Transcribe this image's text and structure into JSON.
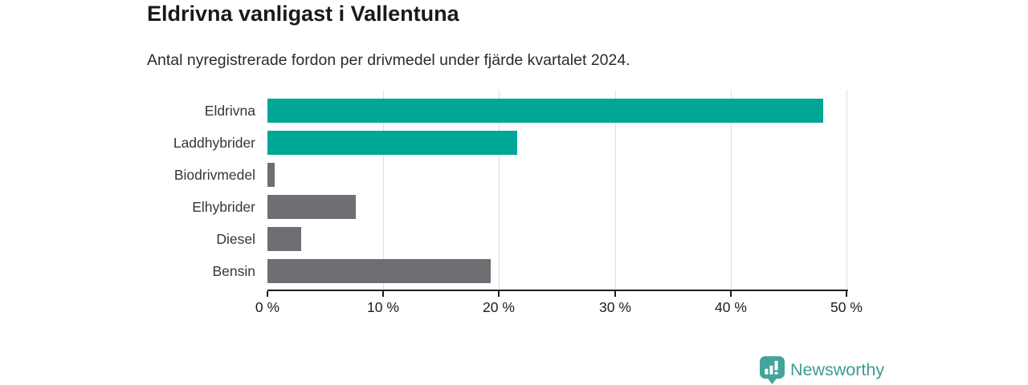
{
  "header": {
    "title": "Eldrivna vanligast i Vallentuna",
    "subtitle": "Antal nyregistrerade fordon per drivmedel under fjärde kvartalet 2024."
  },
  "chart_data": {
    "type": "bar",
    "orientation": "horizontal",
    "title": "Eldrivna vanligast i Vallentuna",
    "subtitle": "Antal nyregistrerade fordon per drivmedel under fjärde kvartalet 2024.",
    "categories": [
      "Eldrivna",
      "Laddhybrider",
      "Biodrivmedel",
      "Elhybrider",
      "Diesel",
      "Bensin"
    ],
    "values": [
      48.0,
      21.6,
      0.6,
      7.6,
      2.9,
      19.3
    ],
    "unit": "%",
    "xlabel": "",
    "ylabel": "",
    "xlim": [
      0,
      50
    ],
    "x_ticks": [
      {
        "value": 0,
        "label": "0 %"
      },
      {
        "value": 10,
        "label": "10 %"
      },
      {
        "value": 20,
        "label": "20 %"
      },
      {
        "value": 30,
        "label": "30 %"
      },
      {
        "value": 40,
        "label": "40 %"
      },
      {
        "value": 50,
        "label": "50 %"
      }
    ],
    "bar_colors": [
      "#00a696",
      "#00a696",
      "#6e6e73",
      "#6e6e73",
      "#6e6e73",
      "#6e6e73"
    ],
    "colors": {
      "highlight": "#00a696",
      "default": "#6e6e73",
      "gridline": "#dfdfdf",
      "axis": "#1d1d1d"
    },
    "grid": true,
    "legend": false
  },
  "footer": {
    "brand": "Newsworthy",
    "brand_color": "#3f9b93",
    "icon_color": "#42a49b"
  }
}
